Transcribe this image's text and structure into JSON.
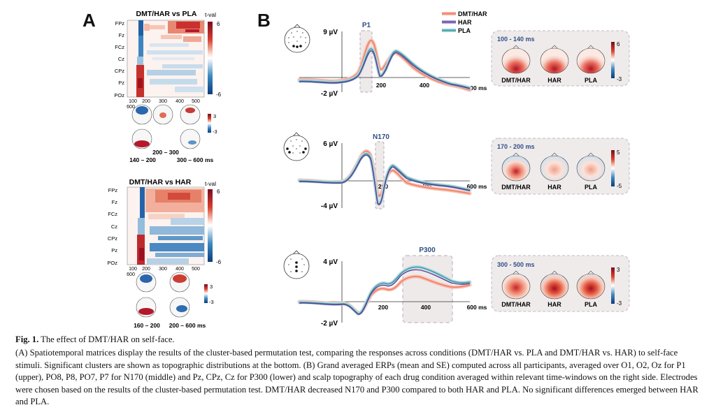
{
  "panelA": {
    "letter": "A",
    "matrix1": {
      "title": "DMT/HAR vs PLA",
      "cbar_label": "t-val",
      "cbar_max": "6",
      "cbar_min": "-6",
      "rows": [
        "FPz",
        "Fz",
        "FCz",
        "Cz",
        "CPz",
        "Pz",
        "POz"
      ],
      "xticks": [
        "100",
        "200",
        "300",
        "400",
        "500"
      ],
      "xtick_end": "600",
      "topo_cbar_max": "3",
      "topo_cbar_min": "-3",
      "windows": [
        "140 – 200",
        "200 – 300",
        "300 – 600 ms"
      ]
    },
    "matrix2": {
      "title": "DMT/HAR vs HAR",
      "cbar_label": "t-val",
      "cbar_max": "6",
      "cbar_min": "-6",
      "rows": [
        "FPz",
        "Fz",
        "FCz",
        "Cz",
        "CPz",
        "Pz",
        "POz"
      ],
      "xticks": [
        "100",
        "200",
        "300",
        "400",
        "500"
      ],
      "xtick_end": "600",
      "topo_cbar_max": "3",
      "topo_cbar_min": "-3",
      "windows": [
        "160 – 200",
        "200 – 600 ms"
      ]
    }
  },
  "panelB": {
    "letter": "B",
    "legend": [
      "DMT/HAR",
      "HAR",
      "PLA"
    ],
    "colors": {
      "DMT/HAR": "#f4907a",
      "HAR": "#5b3e99",
      "PLA": "#3f9aa6"
    },
    "xtick_labels": [
      "200",
      "400",
      "600 ms"
    ],
    "erp1": {
      "component": "P1",
      "ymax": "9 µV",
      "ymin": "-2 µV",
      "window": "100 - 140 ms",
      "cbar_max": "6",
      "cbar_min": "-3",
      "topo_labels": [
        "DMT/HAR",
        "HAR",
        "PLA"
      ]
    },
    "erp2": {
      "component": "N170",
      "ymax": "6 µV",
      "ymin": "-4 µV",
      "window": "170 - 200 ms",
      "cbar_max": "5",
      "cbar_min": "-5",
      "topo_labels": [
        "DMT/HAR",
        "HAR",
        "PLA"
      ]
    },
    "erp3": {
      "component": "P300",
      "ymax": "4 µV",
      "ymin": "-2 µV",
      "window": "300 - 500 ms",
      "cbar_max": "3",
      "cbar_min": "-3",
      "topo_labels": [
        "DMT/HAR",
        "HAR",
        "PLA"
      ]
    }
  },
  "caption": {
    "title_bold": "Fig. 1.",
    "title_rest": "The effect of DMT/HAR on self-face.",
    "body": "(A) Spatiotemporal matrices display the results of the cluster-based permutation test, comparing the responses across conditions (DMT/HAR vs. PLA and DMT/HAR vs. HAR) to self-face stimuli. Significant clusters are shown as topographic distributions at the bottom. (B) Grand averaged ERPs (mean and SE) computed across all participants, averaged over O1, O2, Oz for P1 (upper), PO8, P8, PO7, P7 for N170 (middle) and Pz, CPz, Cz for P300 (lower) and scalp topography of each drug condition averaged within relevant time-windows on the right side. Electrodes were chosen based on the results of the cluster-based permutation test. DMT/HAR decreased N170 and P300 compared to both HAR and PLA. No significant differences emerged between HAR and PLA."
  }
}
